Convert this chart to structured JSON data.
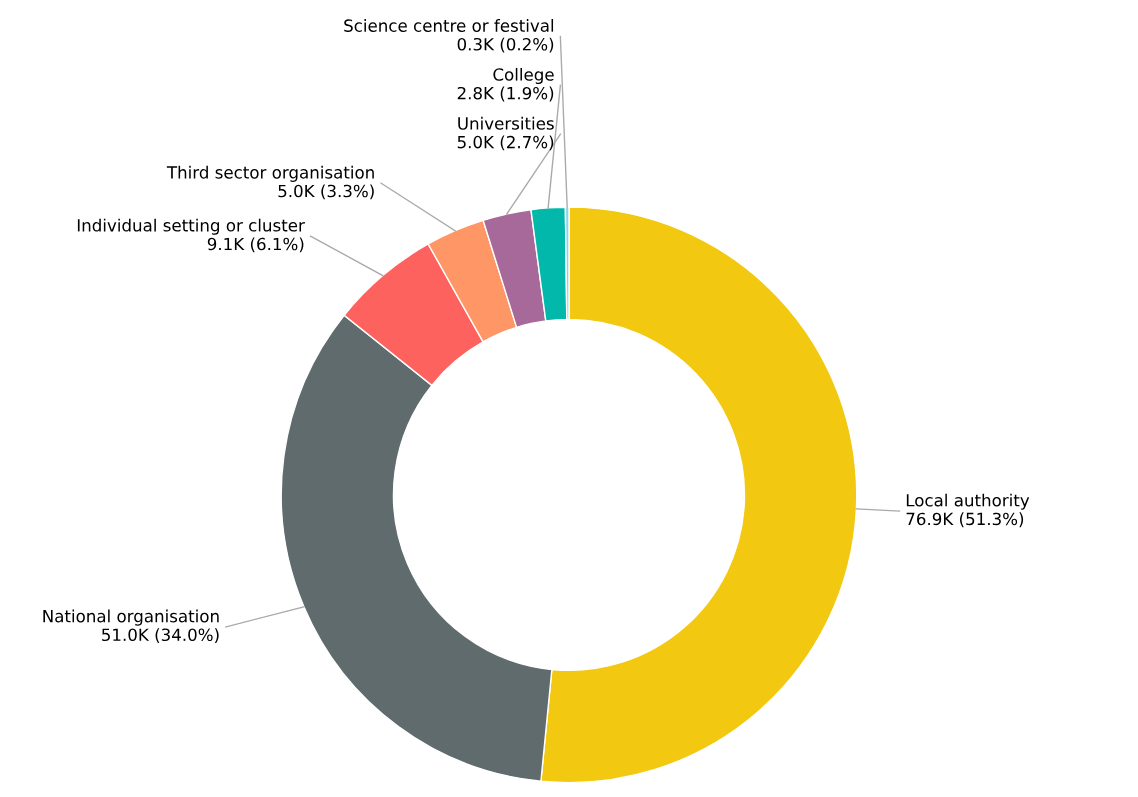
{
  "chart_data": {
    "type": "donut",
    "categories": [
      "Local authority",
      "National organisation",
      "Individual setting or cluster",
      "Third sector organisation",
      "Universities",
      "College",
      "Science centre or festival"
    ],
    "values": [
      51.3,
      34.0,
      6.1,
      3.3,
      2.7,
      1.9,
      0.2
    ],
    "value_labels": [
      "76.9K (51.3%)",
      "51.0K (34.0%)",
      "9.1K (6.1%)",
      "5.0K (3.3%)",
      "5.0K (2.7%)",
      "2.8K (1.9%)",
      "0.3K (0.2%)"
    ],
    "colors": [
      "#f2c811",
      "#5f6b6d",
      "#fd625e",
      "#fe9666",
      "#a66999",
      "#01b8aa",
      "#8ad4eb"
    ],
    "legend": false
  }
}
